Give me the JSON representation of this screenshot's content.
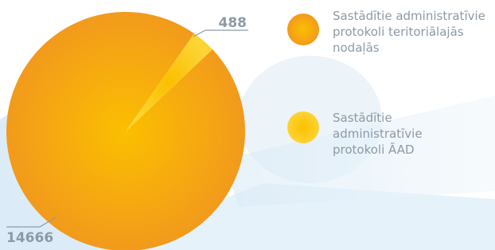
{
  "chart_data": {
    "type": "pie",
    "labels": [
      "Sastādītie administratīvie protokoli teritoriālajās nodaļās",
      "Sastādītie administratīvie protokoli ĀAD"
    ],
    "values": [
      14666,
      488
    ],
    "colors": [
      "#f29a1c",
      "#fcd433"
    ]
  }
}
